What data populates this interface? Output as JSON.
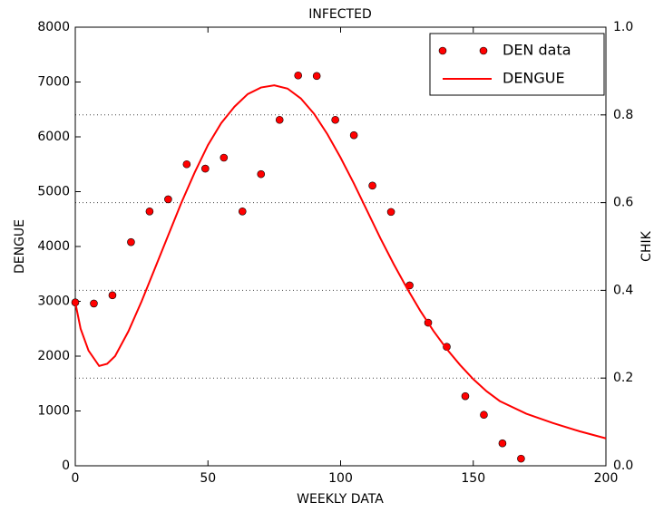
{
  "chart_data": {
    "type": "line",
    "title": "INFECTED",
    "x_label": "WEEKLY DATA",
    "y_label": "DENGUE",
    "y2_label": "CHIK",
    "xlim": [
      0,
      200
    ],
    "xticks": [
      0,
      50,
      100,
      150,
      200
    ],
    "ylim": [
      0,
      8000
    ],
    "yticks": [
      0,
      1000,
      2000,
      3000,
      4000,
      5000,
      6000,
      7000,
      8000
    ],
    "y2lim": [
      0,
      1
    ],
    "y2ticks": [
      {
        "value": 0,
        "label": "0.0"
      },
      {
        "value": 0.2,
        "label": "0.2"
      },
      {
        "value": 0.4,
        "label": "0.4"
      },
      {
        "value": 0.6,
        "label": "0.6"
      },
      {
        "value": 0.8,
        "label": "0.8"
      },
      {
        "value": 1,
        "label": "1.0"
      }
    ],
    "grid": "y2",
    "legend": "upper right",
    "series": [
      {
        "name": "DEN data",
        "mark": "marker",
        "color": "#ff0000",
        "x": [
          0,
          7,
          14,
          21,
          28,
          35,
          42,
          49,
          56,
          63,
          70,
          77,
          84,
          91,
          98,
          105,
          112,
          119,
          126,
          133,
          140,
          147,
          154,
          161,
          168
        ],
        "values": [
          2980,
          2960,
          3110,
          4080,
          4640,
          4860,
          5500,
          5420,
          5620,
          4640,
          5320,
          6310,
          7120,
          7110,
          6310,
          6030,
          5110,
          4630,
          3290,
          2610,
          2170,
          1270,
          930,
          410,
          130
        ]
      },
      {
        "name": "DENGUE",
        "mark": "line",
        "color": "#ff0000",
        "x": [
          0,
          2,
          5,
          9,
          12,
          15,
          20,
          25,
          30,
          35,
          40,
          45,
          50,
          55,
          60,
          65,
          70,
          75,
          80,
          85,
          90,
          95,
          100,
          105,
          110,
          115,
          120,
          125,
          130,
          135,
          140,
          145,
          150,
          155,
          160,
          170,
          180,
          190,
          200
        ],
        "values": [
          2980,
          2500,
          2100,
          1820,
          1860,
          2000,
          2450,
          3000,
          3600,
          4200,
          4800,
          5350,
          5850,
          6250,
          6550,
          6780,
          6900,
          6940,
          6880,
          6700,
          6420,
          6050,
          5620,
          5150,
          4650,
          4150,
          3680,
          3240,
          2830,
          2460,
          2130,
          1840,
          1580,
          1360,
          1180,
          950,
          780,
          630,
          500
        ]
      }
    ]
  }
}
